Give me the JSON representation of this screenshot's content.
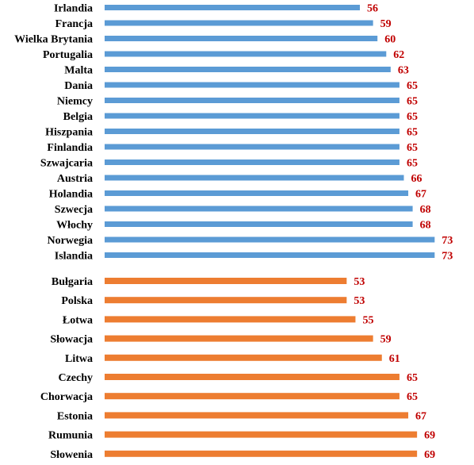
{
  "chart_data": [
    {
      "type": "bar",
      "orientation": "horizontal",
      "categories": [
        "Irlandia",
        "Francja",
        "Wielka Brytania",
        "Portugalia",
        "Malta",
        "Dania",
        "Niemcy",
        "Belgia",
        "Hiszpania",
        "Finlandia",
        "Szwajcaria",
        "Austria",
        "Holandia",
        "Szwecja",
        "Włochy",
        "Norwegia",
        "Islandia"
      ],
      "values": [
        56,
        59,
        60,
        62,
        63,
        65,
        65,
        65,
        65,
        65,
        65,
        66,
        67,
        68,
        68,
        73,
        73
      ],
      "title": "",
      "xlabel": "",
      "ylabel": "",
      "grid": false,
      "legend": "none",
      "color": "#5b9bd5",
      "value_label_color": "#c00000"
    },
    {
      "type": "bar",
      "orientation": "horizontal",
      "categories": [
        "Bułgaria",
        "Polska",
        "Łotwa",
        "Słowacja",
        "Litwa",
        "Czechy",
        "Chorwacja",
        "Estonia",
        "Rumunia",
        "Słowenia"
      ],
      "values": [
        53,
        53,
        55,
        59,
        61,
        65,
        65,
        67,
        69,
        69
      ],
      "title": "",
      "xlabel": "",
      "ylabel": "",
      "grid": false,
      "legend": "none",
      "color": "#ed7d31",
      "value_label_color": "#c00000"
    }
  ]
}
